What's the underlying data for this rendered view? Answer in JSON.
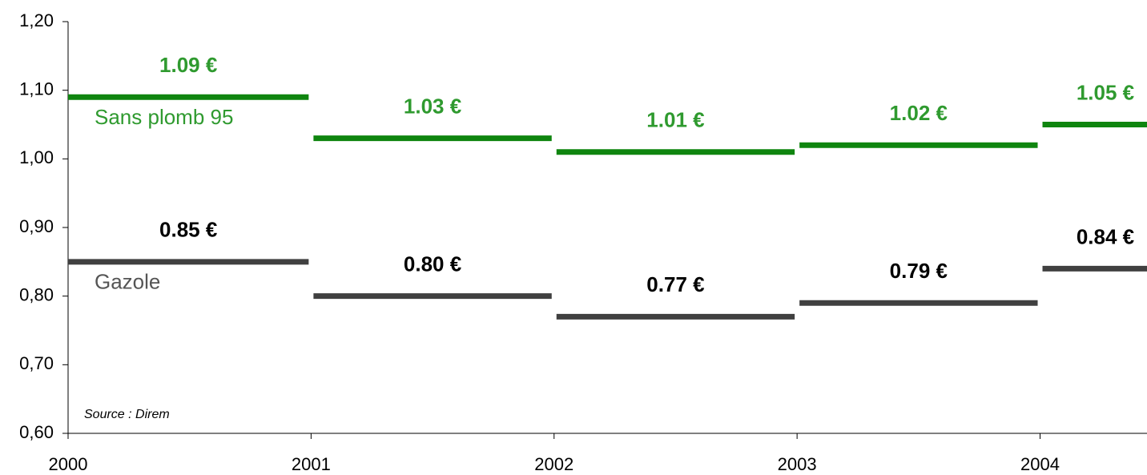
{
  "chart_data": {
    "type": "step",
    "x": [
      2000,
      2001,
      2002,
      2003,
      2004
    ],
    "xlim": [
      2000,
      2004.44
    ],
    "xticks": [
      2000,
      2001,
      2002,
      2003,
      2004
    ],
    "ylim": [
      0.6,
      1.2
    ],
    "yticks": [
      {
        "value": 0.6,
        "label": "0,60"
      },
      {
        "value": 0.7,
        "label": "0,70"
      },
      {
        "value": 0.8,
        "label": "0,80"
      },
      {
        "value": 0.9,
        "label": "0,90"
      },
      {
        "value": 1.0,
        "label": "1,00"
      },
      {
        "value": 1.1,
        "label": "1,10"
      },
      {
        "value": 1.2,
        "label": "1,20"
      }
    ],
    "series": [
      {
        "name": "Sans plomb 95",
        "color": "#0f850f",
        "label_color": "#2f9a2f",
        "values": [
          1.09,
          1.03,
          1.01,
          1.02,
          1.05
        ],
        "value_labels": [
          "1.09 €",
          "1.03 €",
          "1.01 €",
          "1.02 €",
          "1.05 €"
        ]
      },
      {
        "name": "Gazole",
        "color": "#404040",
        "label_color": "#000000",
        "values": [
          0.85,
          0.8,
          0.77,
          0.79,
          0.84
        ],
        "value_labels": [
          "0.85 €",
          "0.80 €",
          "0.77 €",
          "0.79 €",
          "0.84 €"
        ]
      }
    ],
    "annotation": "Source : Direm"
  }
}
